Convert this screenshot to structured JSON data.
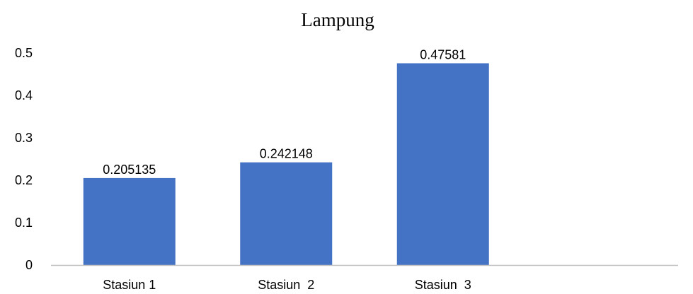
{
  "chart_data": {
    "type": "bar",
    "title": "Lampung",
    "categories": [
      "Stasiun 1",
      "Stasiun  2",
      "Stasiun  3"
    ],
    "values": [
      0.205135,
      0.242148,
      0.47581
    ],
    "data_labels": [
      "0.205135",
      "0.242148",
      "0.47581"
    ],
    "ylim": [
      0,
      0.5
    ],
    "y_ticks": [
      0,
      0.1,
      0.2,
      0.3,
      0.4,
      0.5
    ],
    "y_tick_labels": [
      "0",
      "0.1",
      "0.2",
      "0.3",
      "0.4",
      "0.5"
    ],
    "xlabel": "",
    "ylabel": "",
    "grid": false,
    "legend": "none",
    "bar_color": "#4472c4",
    "axis_color": "#bfbfbf"
  }
}
